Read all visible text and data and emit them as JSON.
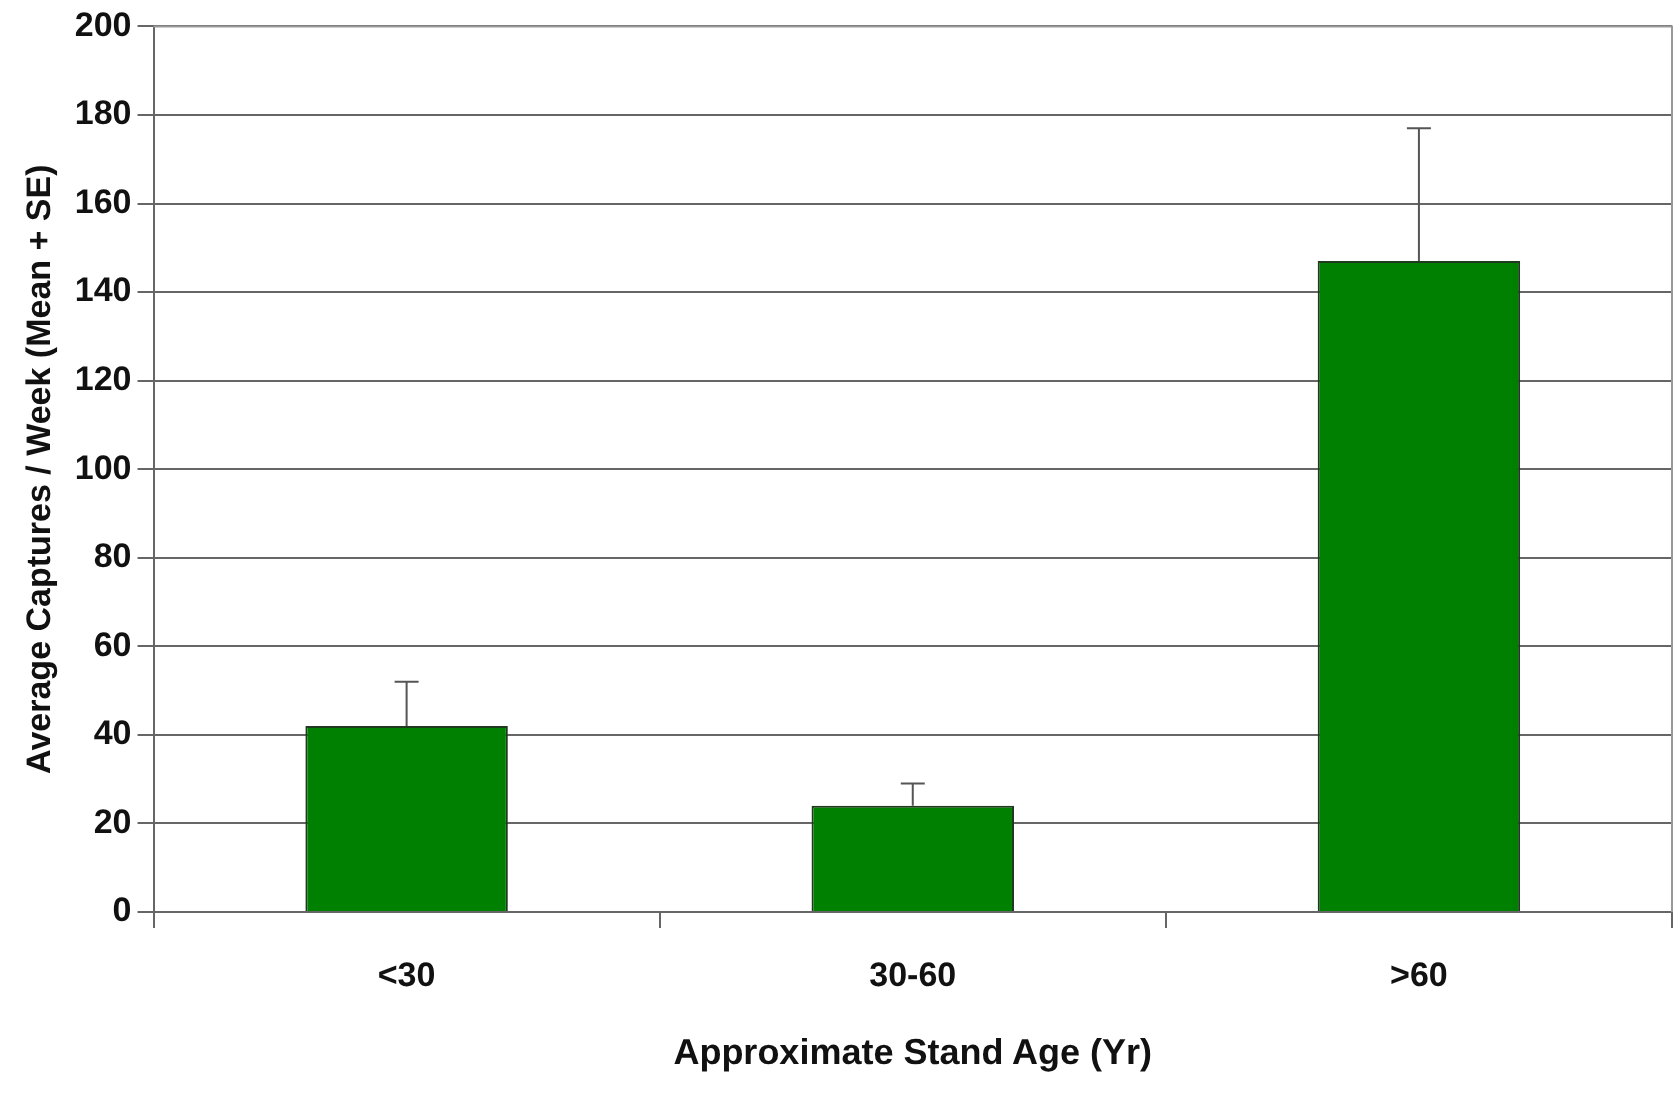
{
  "chart_data": {
    "type": "bar",
    "xlabel": "Approximate Stand Age (Yr)",
    "ylabel": "Average Captures / Week (Mean + SE)",
    "categories": [
      "<30",
      "30-60",
      ">60"
    ],
    "values": [
      42,
      24,
      147
    ],
    "errors": [
      [
        42,
        52
      ],
      [
        24,
        29
      ],
      [
        147,
        177
      ]
    ],
    "color": "#008000",
    "ylim": [
      0,
      200
    ],
    "yticks": [
      0,
      20,
      40,
      60,
      80,
      100,
      120,
      140,
      160,
      180,
      200
    ],
    "grid": "y",
    "legend": false
  }
}
